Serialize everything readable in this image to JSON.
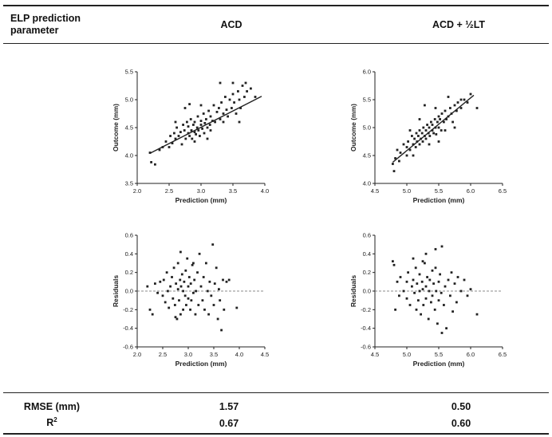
{
  "table": {
    "header": {
      "param_label_line1": "ELP prediction",
      "param_label_line2": "parameter",
      "col1": "ACD",
      "col2": "ACD + ½LT"
    },
    "stats": {
      "rmse_label": "RMSE (mm)",
      "r2_label_base": "R",
      "r2_label_sup": "2",
      "acd_rmse": "1.57",
      "acdlt_rmse": "0.50",
      "acd_r2": "0.67",
      "acdlt_r2": "0.60"
    }
  },
  "colors": {
    "ink": "#222222",
    "rule": "#222222",
    "zero_line": "#666666"
  },
  "chart_data": [
    {
      "id": "acd-outcome",
      "type": "scatter",
      "xlabel": "Prediction (mm)",
      "ylabel": "Outcome (mm)",
      "xlim": [
        2.0,
        4.0
      ],
      "ylim": [
        3.5,
        5.5
      ],
      "xticks": [
        "2.0",
        "2.5",
        "3.0",
        "3.5",
        "4.0"
      ],
      "yticks": [
        "3.5",
        "4.0",
        "4.5",
        "5.0",
        "5.5"
      ],
      "fit_line": [
        [
          2.2,
          4.04
        ],
        [
          3.95,
          5.06
        ]
      ],
      "points": [
        [
          2.2,
          4.05
        ],
        [
          2.22,
          3.88
        ],
        [
          2.28,
          3.84
        ],
        [
          2.35,
          4.1
        ],
        [
          2.4,
          4.15
        ],
        [
          2.45,
          4.25
        ],
        [
          2.5,
          4.15
        ],
        [
          2.52,
          4.35
        ],
        [
          2.55,
          4.22
        ],
        [
          2.58,
          4.4
        ],
        [
          2.6,
          4.3
        ],
        [
          2.62,
          4.5
        ],
        [
          2.65,
          4.35
        ],
        [
          2.68,
          4.42
        ],
        [
          2.7,
          4.2
        ],
        [
          2.72,
          4.55
        ],
        [
          2.74,
          4.45
        ],
        [
          2.76,
          4.3
        ],
        [
          2.78,
          4.6
        ],
        [
          2.8,
          4.4
        ],
        [
          2.8,
          4.52
        ],
        [
          2.82,
          4.35
        ],
        [
          2.84,
          4.65
        ],
        [
          2.85,
          4.45
        ],
        [
          2.86,
          4.3
        ],
        [
          2.88,
          4.55
        ],
        [
          2.9,
          4.42
        ],
        [
          2.9,
          4.6
        ],
        [
          2.92,
          4.38
        ],
        [
          2.94,
          4.5
        ],
        [
          2.95,
          4.7
        ],
        [
          2.96,
          4.45
        ],
        [
          2.98,
          4.35
        ],
        [
          3.0,
          4.55
        ],
        [
          3.0,
          4.62
        ],
        [
          3.02,
          4.48
        ],
        [
          3.04,
          4.75
        ],
        [
          3.05,
          4.4
        ],
        [
          3.06,
          4.58
        ],
        [
          3.08,
          4.65
        ],
        [
          3.1,
          4.5
        ],
        [
          3.12,
          4.8
        ],
        [
          3.14,
          4.55
        ],
        [
          3.15,
          4.7
        ],
        [
          3.18,
          4.62
        ],
        [
          3.2,
          4.9
        ],
        [
          3.22,
          4.6
        ],
        [
          3.25,
          4.78
        ],
        [
          3.28,
          4.85
        ],
        [
          3.3,
          4.65
        ],
        [
          3.32,
          4.95
        ],
        [
          3.35,
          4.75
        ],
        [
          3.38,
          5.05
        ],
        [
          3.4,
          4.82
        ],
        [
          3.42,
          4.7
        ],
        [
          3.45,
          5.0
        ],
        [
          3.48,
          4.85
        ],
        [
          3.5,
          5.1
        ],
        [
          3.52,
          4.95
        ],
        [
          3.55,
          4.75
        ],
        [
          3.58,
          5.15
        ],
        [
          3.6,
          5.0
        ],
        [
          3.62,
          4.85
        ],
        [
          3.65,
          5.25
        ],
        [
          3.68,
          5.05
        ],
        [
          3.7,
          5.3
        ],
        [
          3.72,
          5.15
        ],
        [
          3.78,
          5.2
        ],
        [
          3.85,
          5.05
        ],
        [
          3.6,
          4.6
        ],
        [
          3.3,
          5.3
        ],
        [
          3.35,
          4.6
        ],
        [
          2.75,
          4.85
        ],
        [
          3.0,
          4.9
        ],
        [
          2.9,
          4.25
        ],
        [
          3.15,
          4.45
        ],
        [
          2.6,
          4.6
        ],
        [
          3.5,
          5.3
        ],
        [
          2.82,
          4.92
        ],
        [
          3.1,
          4.3
        ]
      ]
    },
    {
      "id": "acdlt-outcome",
      "type": "scatter",
      "xlabel": "Prediction (mm)",
      "ylabel": "Outcome (mm)",
      "xlim": [
        4.5,
        6.5
      ],
      "ylim": [
        4.0,
        6.0
      ],
      "xticks": [
        "4.5",
        "5.0",
        "5.5",
        "6.0",
        "6.5"
      ],
      "yticks": [
        "4.0",
        "4.5",
        "5.0",
        "5.5",
        "6.0"
      ],
      "fit_line": [
        [
          4.78,
          4.38
        ],
        [
          6.05,
          5.58
        ]
      ],
      "points": [
        [
          4.78,
          4.35
        ],
        [
          4.8,
          4.22
        ],
        [
          4.82,
          4.45
        ],
        [
          4.85,
          4.6
        ],
        [
          4.88,
          4.4
        ],
        [
          4.9,
          4.55
        ],
        [
          4.95,
          4.7
        ],
        [
          5.0,
          4.5
        ],
        [
          5.0,
          4.65
        ],
        [
          5.02,
          4.75
        ],
        [
          5.05,
          4.6
        ],
        [
          5.08,
          4.85
        ],
        [
          5.1,
          4.7
        ],
        [
          5.12,
          4.8
        ],
        [
          5.14,
          4.65
        ],
        [
          5.15,
          4.9
        ],
        [
          5.16,
          4.75
        ],
        [
          5.18,
          4.85
        ],
        [
          5.2,
          4.7
        ],
        [
          5.2,
          4.95
        ],
        [
          5.22,
          4.8
        ],
        [
          5.24,
          4.9
        ],
        [
          5.25,
          4.75
        ],
        [
          5.26,
          5.0
        ],
        [
          5.28,
          4.85
        ],
        [
          5.3,
          4.95
        ],
        [
          5.3,
          4.8
        ],
        [
          5.32,
          5.05
        ],
        [
          5.34,
          4.9
        ],
        [
          5.35,
          5.0
        ],
        [
          5.36,
          4.85
        ],
        [
          5.38,
          5.1
        ],
        [
          5.4,
          4.95
        ],
        [
          5.4,
          5.05
        ],
        [
          5.42,
          4.9
        ],
        [
          5.44,
          5.15
        ],
        [
          5.45,
          5.0
        ],
        [
          5.46,
          4.88
        ],
        [
          5.48,
          5.1
        ],
        [
          5.5,
          5.2
        ],
        [
          5.5,
          5.0
        ],
        [
          5.52,
          5.15
        ],
        [
          5.54,
          4.95
        ],
        [
          5.55,
          5.25
        ],
        [
          5.58,
          5.1
        ],
        [
          5.6,
          5.3
        ],
        [
          5.62,
          5.15
        ],
        [
          5.65,
          5.2
        ],
        [
          5.68,
          5.35
        ],
        [
          5.7,
          5.25
        ],
        [
          5.72,
          5.1
        ],
        [
          5.75,
          5.4
        ],
        [
          5.78,
          5.3
        ],
        [
          5.8,
          5.45
        ],
        [
          5.85,
          5.35
        ],
        [
          5.9,
          5.5
        ],
        [
          5.95,
          5.45
        ],
        [
          6.0,
          5.6
        ],
        [
          6.1,
          5.35
        ],
        [
          5.28,
          5.4
        ],
        [
          5.5,
          4.75
        ],
        [
          5.65,
          5.55
        ],
        [
          5.1,
          4.5
        ],
        [
          5.35,
          4.7
        ],
        [
          5.2,
          5.15
        ],
        [
          5.6,
          4.95
        ],
        [
          5.45,
          5.35
        ],
        [
          5.05,
          4.95
        ],
        [
          5.85,
          5.5
        ],
        [
          5.75,
          5.0
        ]
      ]
    },
    {
      "id": "acd-residuals",
      "type": "scatter",
      "xlabel": "Prediction (mm)",
      "ylabel": "Residuals",
      "xlim": [
        2.0,
        4.5
      ],
      "ylim": [
        -0.6,
        0.6
      ],
      "xticks": [
        "2.0",
        "2.5",
        "3.0",
        "3.5",
        "4.0",
        "4.5"
      ],
      "yticks": [
        "-0.6",
        "-0.4",
        "-0.2",
        "0.0",
        "0.2",
        "0.4",
        "0.6"
      ],
      "zero_line": true,
      "points": [
        [
          2.2,
          0.05
        ],
        [
          2.25,
          -0.2
        ],
        [
          2.3,
          -0.25
        ],
        [
          2.35,
          0.08
        ],
        [
          2.4,
          -0.02
        ],
        [
          2.45,
          0.1
        ],
        [
          2.5,
          -0.05
        ],
        [
          2.52,
          0.12
        ],
        [
          2.55,
          -0.12
        ],
        [
          2.58,
          0.2
        ],
        [
          2.6,
          0.0
        ],
        [
          2.62,
          -0.18
        ],
        [
          2.65,
          0.05
        ],
        [
          2.68,
          0.15
        ],
        [
          2.7,
          -0.08
        ],
        [
          2.72,
          0.25
        ],
        [
          2.74,
          -0.15
        ],
        [
          2.76,
          0.08
        ],
        [
          2.78,
          -0.3
        ],
        [
          2.8,
          0.02
        ],
        [
          2.8,
          0.3
        ],
        [
          2.82,
          -0.1
        ],
        [
          2.84,
          0.12
        ],
        [
          2.85,
          -0.25
        ],
        [
          2.86,
          0.05
        ],
        [
          2.88,
          0.18
        ],
        [
          2.9,
          -0.2
        ],
        [
          2.9,
          0.0
        ],
        [
          2.92,
          0.1
        ],
        [
          2.94,
          -0.05
        ],
        [
          2.95,
          0.22
        ],
        [
          2.96,
          -0.15
        ],
        [
          2.98,
          0.35
        ],
        [
          3.0,
          -0.08
        ],
        [
          3.0,
          0.05
        ],
        [
          3.02,
          0.15
        ],
        [
          3.04,
          -0.2
        ],
        [
          3.05,
          0.08
        ],
        [
          3.06,
          -0.1
        ],
        [
          3.08,
          0.28
        ],
        [
          3.1,
          -0.02
        ],
        [
          3.12,
          0.12
        ],
        [
          3.14,
          -0.25
        ],
        [
          3.15,
          0.0
        ],
        [
          3.18,
          0.2
        ],
        [
          3.2,
          -0.15
        ],
        [
          3.22,
          0.4
        ],
        [
          3.25,
          0.05
        ],
        [
          3.28,
          -0.1
        ],
        [
          3.3,
          0.15
        ],
        [
          3.32,
          -0.2
        ],
        [
          3.35,
          0.3
        ],
        [
          3.38,
          0.0
        ],
        [
          3.4,
          -0.25
        ],
        [
          3.42,
          0.1
        ],
        [
          3.45,
          -0.05
        ],
        [
          3.48,
          0.5
        ],
        [
          3.5,
          -0.15
        ],
        [
          3.52,
          0.08
        ],
        [
          3.55,
          0.25
        ],
        [
          3.58,
          -0.3
        ],
        [
          3.6,
          0.02
        ],
        [
          3.62,
          -0.1
        ],
        [
          3.65,
          -0.42
        ],
        [
          3.68,
          0.12
        ],
        [
          3.7,
          -0.2
        ],
        [
          3.75,
          0.1
        ],
        [
          3.8,
          0.12
        ],
        [
          3.95,
          -0.18
        ],
        [
          2.85,
          0.42
        ],
        [
          3.1,
          0.3
        ],
        [
          2.75,
          -0.28
        ]
      ]
    },
    {
      "id": "acdlt-residuals",
      "type": "scatter",
      "xlabel": "Prediction (mm)",
      "ylabel": "Residuals",
      "xlim": [
        4.5,
        6.5
      ],
      "ylim": [
        -0.6,
        0.6
      ],
      "xticks": [
        "4.5",
        "5.0",
        "5.5",
        "6.0",
        "6.5"
      ],
      "yticks": [
        "-0.6",
        "-0.4",
        "-0.2",
        "0.0",
        "0.2",
        "0.4",
        "0.6"
      ],
      "zero_line": true,
      "points": [
        [
          4.78,
          0.32
        ],
        [
          4.8,
          0.28
        ],
        [
          4.82,
          -0.2
        ],
        [
          4.85,
          0.1
        ],
        [
          4.88,
          -0.05
        ],
        [
          4.9,
          0.15
        ],
        [
          4.95,
          0.0
        ],
        [
          5.0,
          0.1
        ],
        [
          5.0,
          -0.08
        ],
        [
          5.02,
          0.2
        ],
        [
          5.05,
          -0.15
        ],
        [
          5.08,
          0.05
        ],
        [
          5.1,
          0.12
        ],
        [
          5.12,
          -0.02
        ],
        [
          5.14,
          0.25
        ],
        [
          5.15,
          -0.2
        ],
        [
          5.16,
          0.08
        ],
        [
          5.18,
          -0.1
        ],
        [
          5.2,
          0.18
        ],
        [
          5.2,
          0.0
        ],
        [
          5.22,
          -0.25
        ],
        [
          5.24,
          0.1
        ],
        [
          5.25,
          0.02
        ],
        [
          5.26,
          -0.15
        ],
        [
          5.28,
          0.3
        ],
        [
          5.3,
          0.05
        ],
        [
          5.3,
          -0.08
        ],
        [
          5.32,
          0.15
        ],
        [
          5.34,
          -0.3
        ],
        [
          5.35,
          0.0
        ],
        [
          5.36,
          0.12
        ],
        [
          5.38,
          -0.12
        ],
        [
          5.4,
          0.22
        ],
        [
          5.4,
          -0.05
        ],
        [
          5.42,
          0.08
        ],
        [
          5.44,
          -0.2
        ],
        [
          5.45,
          0.45
        ],
        [
          5.46,
          0.0
        ],
        [
          5.48,
          -0.35
        ],
        [
          5.5,
          0.1
        ],
        [
          5.5,
          -0.1
        ],
        [
          5.52,
          0.18
        ],
        [
          5.54,
          -0.02
        ],
        [
          5.55,
          0.48
        ],
        [
          5.58,
          -0.15
        ],
        [
          5.6,
          0.05
        ],
        [
          5.62,
          -0.4
        ],
        [
          5.65,
          0.12
        ],
        [
          5.68,
          -0.05
        ],
        [
          5.7,
          0.2
        ],
        [
          5.72,
          -0.22
        ],
        [
          5.75,
          0.08
        ],
        [
          5.78,
          -0.12
        ],
        [
          5.8,
          0.15
        ],
        [
          5.85,
          0.0
        ],
        [
          5.9,
          0.12
        ],
        [
          5.95,
          -0.05
        ],
        [
          6.0,
          0.02
        ],
        [
          6.1,
          -0.25
        ],
        [
          5.25,
          0.32
        ],
        [
          5.1,
          0.35
        ],
        [
          5.55,
          -0.45
        ],
        [
          5.3,
          0.4
        ],
        [
          5.45,
          0.25
        ]
      ]
    }
  ]
}
